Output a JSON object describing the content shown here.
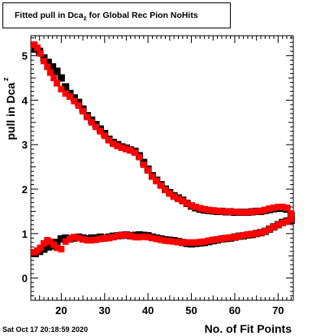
{
  "title": {
    "prefix": "Fitted pull in Dca",
    "sub": "z",
    "suffix": " for Global Rec Pion NoHits"
  },
  "timestamp": "Sat Oct 17 20:18:59 2020",
  "chart_data": {
    "type": "scatter",
    "xlabel": "No. of Fit Points",
    "ylabel": "pull in Dca",
    "ylabel_sub": "z",
    "xlim": [
      13,
      73.5
    ],
    "ylim": [
      -0.5,
      5.45
    ],
    "xticks": [
      20,
      30,
      40,
      50,
      60,
      70
    ],
    "yticks": [
      0,
      1,
      2,
      3,
      4,
      5
    ],
    "grid": false,
    "series": [
      {
        "color": "#000000",
        "points": [
          [
            14,
            5.15
          ],
          [
            15,
            5.1
          ],
          [
            16,
            4.95
          ],
          [
            17,
            4.85
          ],
          [
            18,
            4.75
          ],
          [
            19,
            4.65
          ],
          [
            20,
            4.5
          ],
          [
            21,
            4.3
          ],
          [
            22,
            4.15
          ],
          [
            23,
            4.05
          ],
          [
            24,
            3.95
          ],
          [
            25,
            3.8
          ],
          [
            26,
            3.65
          ],
          [
            27,
            3.55
          ],
          [
            28,
            3.45
          ],
          [
            29,
            3.35
          ],
          [
            30,
            3.25
          ],
          [
            31,
            3.12
          ],
          [
            32,
            3.05
          ],
          [
            33,
            3.0
          ],
          [
            34,
            2.95
          ],
          [
            35,
            2.92
          ],
          [
            36,
            2.88
          ],
          [
            37,
            2.85
          ],
          [
            38,
            2.75
          ],
          [
            39,
            2.6
          ],
          [
            40,
            2.45
          ],
          [
            41,
            2.3
          ],
          [
            42,
            2.2
          ],
          [
            43,
            2.1
          ],
          [
            44,
            2.0
          ],
          [
            45,
            1.92
          ],
          [
            46,
            1.85
          ],
          [
            47,
            1.8
          ],
          [
            48,
            1.75
          ],
          [
            49,
            1.68
          ],
          [
            50,
            1.62
          ],
          [
            51,
            1.58
          ],
          [
            52,
            1.55
          ],
          [
            53,
            1.53
          ],
          [
            54,
            1.52
          ],
          [
            55,
            1.51
          ],
          [
            56,
            1.5
          ],
          [
            57,
            1.5
          ],
          [
            58,
            1.49
          ],
          [
            59,
            1.49
          ],
          [
            60,
            1.48
          ],
          [
            61,
            1.48
          ],
          [
            62,
            1.48
          ],
          [
            63,
            1.48
          ],
          [
            64,
            1.49
          ],
          [
            65,
            1.5
          ],
          [
            66,
            1.5
          ],
          [
            67,
            1.52
          ],
          [
            68,
            1.54
          ],
          [
            69,
            1.56
          ],
          [
            70,
            1.57
          ],
          [
            71,
            1.57
          ],
          [
            72,
            1.55
          ],
          [
            73,
            1.4
          ],
          [
            14,
            0.55
          ],
          [
            15,
            0.6
          ],
          [
            16,
            0.65
          ],
          [
            17,
            0.7
          ],
          [
            18,
            0.72
          ],
          [
            19,
            0.8
          ],
          [
            20,
            0.88
          ],
          [
            21,
            0.9
          ],
          [
            22,
            0.88
          ],
          [
            23,
            0.9
          ],
          [
            24,
            0.92
          ],
          [
            25,
            0.9
          ],
          [
            26,
            0.88
          ],
          [
            27,
            0.9
          ],
          [
            28,
            0.9
          ],
          [
            29,
            0.92
          ],
          [
            30,
            0.9
          ],
          [
            31,
            0.92
          ],
          [
            32,
            0.94
          ],
          [
            33,
            0.95
          ],
          [
            34,
            0.96
          ],
          [
            35,
            0.97
          ],
          [
            36,
            0.95
          ],
          [
            37,
            0.96
          ],
          [
            38,
            0.97
          ],
          [
            39,
            0.96
          ],
          [
            40,
            0.95
          ],
          [
            41,
            0.92
          ],
          [
            42,
            0.9
          ],
          [
            43,
            0.88
          ],
          [
            44,
            0.86
          ],
          [
            45,
            0.85
          ],
          [
            46,
            0.84
          ],
          [
            47,
            0.82
          ],
          [
            48,
            0.8
          ],
          [
            49,
            0.78
          ],
          [
            50,
            0.77
          ],
          [
            51,
            0.78
          ],
          [
            52,
            0.79
          ],
          [
            53,
            0.8
          ],
          [
            54,
            0.82
          ],
          [
            55,
            0.84
          ],
          [
            56,
            0.86
          ],
          [
            57,
            0.88
          ],
          [
            58,
            0.89
          ],
          [
            59,
            0.9
          ],
          [
            60,
            0.92
          ],
          [
            61,
            0.94
          ],
          [
            62,
            0.95
          ],
          [
            63,
            0.97
          ],
          [
            64,
            0.98
          ],
          [
            65,
            1.0
          ],
          [
            66,
            1.02
          ],
          [
            67,
            1.05
          ],
          [
            68,
            1.1
          ],
          [
            69,
            1.15
          ],
          [
            70,
            1.2
          ],
          [
            71,
            1.25
          ],
          [
            72,
            1.28
          ],
          [
            73,
            1.3
          ]
        ]
      },
      {
        "color": "#ff0000",
        "points": [
          [
            13.8,
            5.25
          ],
          [
            14.5,
            5.18
          ],
          [
            15.2,
            5.05
          ],
          [
            16,
            4.88
          ],
          [
            16.8,
            4.75
          ],
          [
            17.5,
            4.62
          ],
          [
            18.3,
            4.5
          ],
          [
            19,
            4.38
          ],
          [
            20,
            4.25
          ],
          [
            21,
            4.15
          ],
          [
            22,
            4.08
          ],
          [
            23,
            3.98
          ],
          [
            24,
            3.88
          ],
          [
            25,
            3.75
          ],
          [
            26,
            3.62
          ],
          [
            27,
            3.5
          ],
          [
            28,
            3.4
          ],
          [
            29,
            3.3
          ],
          [
            30,
            3.2
          ],
          [
            31,
            3.1
          ],
          [
            32,
            3.02
          ],
          [
            33,
            2.97
          ],
          [
            34,
            2.93
          ],
          [
            35,
            2.9
          ],
          [
            36,
            2.87
          ],
          [
            37,
            2.82
          ],
          [
            38,
            2.72
          ],
          [
            39,
            2.55
          ],
          [
            40,
            2.42
          ],
          [
            41,
            2.28
          ],
          [
            42,
            2.18
          ],
          [
            43,
            2.08
          ],
          [
            44,
            1.98
          ],
          [
            45,
            1.9
          ],
          [
            46,
            1.83
          ],
          [
            47,
            1.78
          ],
          [
            48,
            1.73
          ],
          [
            49,
            1.68
          ],
          [
            50,
            1.63
          ],
          [
            51,
            1.6
          ],
          [
            52,
            1.57
          ],
          [
            53,
            1.55
          ],
          [
            54,
            1.53
          ],
          [
            55,
            1.52
          ],
          [
            56,
            1.51
          ],
          [
            57,
            1.5
          ],
          [
            58,
            1.5
          ],
          [
            59,
            1.49
          ],
          [
            60,
            1.49
          ],
          [
            61,
            1.48
          ],
          [
            62,
            1.48
          ],
          [
            63,
            1.48
          ],
          [
            64,
            1.49
          ],
          [
            65,
            1.5
          ],
          [
            66,
            1.51
          ],
          [
            67,
            1.53
          ],
          [
            68,
            1.56
          ],
          [
            69,
            1.58
          ],
          [
            70,
            1.6
          ],
          [
            71,
            1.6
          ],
          [
            72,
            1.58
          ],
          [
            73,
            1.45
          ],
          [
            13.8,
            0.58
          ],
          [
            14.5,
            0.62
          ],
          [
            15.2,
            0.68
          ],
          [
            16,
            0.78
          ],
          [
            16.8,
            0.85
          ],
          [
            17.5,
            0.82
          ],
          [
            18.3,
            0.75
          ],
          [
            19,
            0.68
          ],
          [
            20,
            0.65
          ],
          [
            21,
            0.82
          ],
          [
            22,
            0.88
          ],
          [
            23,
            0.92
          ],
          [
            24,
            0.9
          ],
          [
            25,
            0.87
          ],
          [
            26,
            0.85
          ],
          [
            27,
            0.85
          ],
          [
            28,
            0.86
          ],
          [
            29,
            0.88
          ],
          [
            30,
            0.9
          ],
          [
            31,
            0.9
          ],
          [
            32,
            0.92
          ],
          [
            33,
            0.95
          ],
          [
            34,
            0.96
          ],
          [
            35,
            0.97
          ],
          [
            36,
            0.95
          ],
          [
            37,
            0.92
          ],
          [
            38,
            0.92
          ],
          [
            39,
            0.93
          ],
          [
            40,
            0.92
          ],
          [
            41,
            0.9
          ],
          [
            42,
            0.88
          ],
          [
            43,
            0.86
          ],
          [
            44,
            0.84
          ],
          [
            45,
            0.83
          ],
          [
            46,
            0.82
          ],
          [
            47,
            0.81
          ],
          [
            48,
            0.8
          ],
          [
            49,
            0.8
          ],
          [
            50,
            0.8
          ],
          [
            51,
            0.8
          ],
          [
            52,
            0.81
          ],
          [
            53,
            0.82
          ],
          [
            54,
            0.84
          ],
          [
            55,
            0.86
          ],
          [
            56,
            0.87
          ],
          [
            57,
            0.88
          ],
          [
            58,
            0.9
          ],
          [
            59,
            0.91
          ],
          [
            60,
            0.92
          ],
          [
            61,
            0.94
          ],
          [
            62,
            0.96
          ],
          [
            63,
            0.98
          ],
          [
            64,
            0.99
          ],
          [
            65,
            1.0
          ],
          [
            66,
            1.02
          ],
          [
            67,
            1.05
          ],
          [
            68,
            1.1
          ],
          [
            69,
            1.15
          ],
          [
            70,
            1.2
          ],
          [
            71,
            1.24
          ],
          [
            72,
            1.27
          ],
          [
            73,
            1.32
          ]
        ]
      }
    ]
  }
}
